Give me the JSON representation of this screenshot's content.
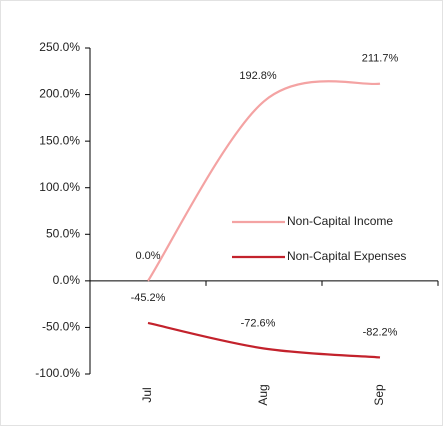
{
  "chart_data": {
    "type": "line",
    "categories": [
      "Jul",
      "Aug",
      "Sep"
    ],
    "series": [
      {
        "name": "Non-Capital Income",
        "color": "#f4a3a3",
        "values": [
          0,
          192.8,
          211.7
        ],
        "value_labels": [
          "0.0%",
          "192.8%",
          "211.7%"
        ]
      },
      {
        "name": "Non-Capital Expenses",
        "color": "#c3222c",
        "values": [
          -45.2,
          -72.6,
          -82.2
        ],
        "value_labels": [
          "-45.2%",
          "-72.6%",
          "-82.2%"
        ]
      }
    ],
    "ylim": [
      -100,
      250
    ],
    "yticks": [
      {
        "value": -100,
        "label": "-100.0%"
      },
      {
        "value": -50,
        "label": "-50.0%"
      },
      {
        "value": 0,
        "label": "0.0%"
      },
      {
        "value": 50,
        "label": "50.0%"
      },
      {
        "value": 100,
        "label": "100.0%"
      },
      {
        "value": 150,
        "label": "150.0%"
      },
      {
        "value": 200,
        "label": "200.0%"
      },
      {
        "value": 250,
        "label": "250.0%"
      }
    ],
    "legend": "right"
  }
}
